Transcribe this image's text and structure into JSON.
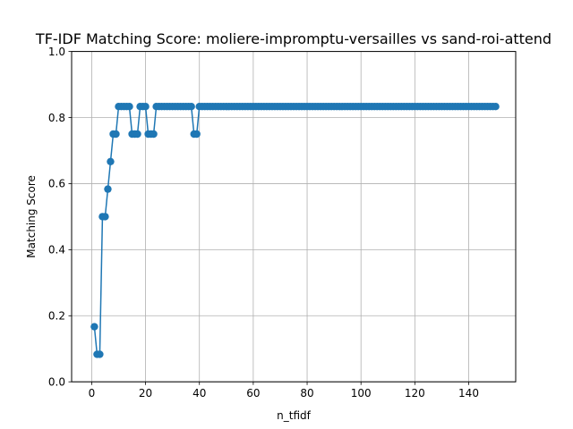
{
  "chart_data": {
    "type": "line",
    "title": "TF-IDF Matching Score: moliere-impromptu-versailles vs sand-roi-attend",
    "xlabel": "n_tfidf",
    "ylabel": "Matching Score",
    "xlim": [
      -7.45,
      157.45
    ],
    "ylim": [
      0.0,
      1.0
    ],
    "x_ticks": [
      0,
      20,
      40,
      60,
      80,
      100,
      120,
      140
    ],
    "x_tick_labels": [
      "0",
      "20",
      "40",
      "60",
      "80",
      "100",
      "120",
      "140"
    ],
    "y_ticks": [
      0.0,
      0.2,
      0.4,
      0.6,
      0.8,
      1.0
    ],
    "y_tick_labels": [
      "0.0",
      "0.2",
      "0.4",
      "0.6",
      "0.8",
      "1.0"
    ],
    "grid": true,
    "marker": "circle",
    "color": "#1f77b4",
    "series": [
      {
        "x": [
          1,
          2,
          3,
          4,
          5,
          6,
          7,
          8,
          9,
          10,
          11,
          12,
          13,
          14,
          15,
          16,
          17,
          18,
          19,
          20,
          21,
          22,
          23,
          24,
          25,
          26,
          27,
          28,
          29,
          30,
          31,
          32,
          33,
          34,
          35,
          36,
          37,
          38,
          39,
          40,
          41,
          42,
          43,
          44,
          45,
          46,
          47,
          48,
          49,
          50,
          51,
          52,
          53,
          54,
          55,
          56,
          57,
          58,
          59,
          60,
          61,
          62,
          63,
          64,
          65,
          66,
          67,
          68,
          69,
          70,
          71,
          72,
          73,
          74,
          75,
          76,
          77,
          78,
          79,
          80,
          81,
          82,
          83,
          84,
          85,
          86,
          87,
          88,
          89,
          90,
          91,
          92,
          93,
          94,
          95,
          96,
          97,
          98,
          99,
          100,
          101,
          102,
          103,
          104,
          105,
          106,
          107,
          108,
          109,
          110,
          111,
          112,
          113,
          114,
          115,
          116,
          117,
          118,
          119,
          120,
          121,
          122,
          123,
          124,
          125,
          126,
          127,
          128,
          129,
          130,
          131,
          132,
          133,
          134,
          135,
          136,
          137,
          138,
          139,
          140,
          141,
          142,
          143,
          144,
          145,
          146,
          147,
          148,
          149,
          150
        ],
        "values": [
          0.1667,
          0.0833,
          0.0833,
          0.5,
          0.5,
          0.5833,
          0.6667,
          0.75,
          0.75,
          0.8333,
          0.8333,
          0.8333,
          0.8333,
          0.8333,
          0.75,
          0.75,
          0.75,
          0.8333,
          0.8333,
          0.8333,
          0.75,
          0.75,
          0.75,
          0.8333,
          0.8333,
          0.8333,
          0.8333,
          0.8333,
          0.8333,
          0.8333,
          0.8333,
          0.8333,
          0.8333,
          0.8333,
          0.8333,
          0.8333,
          0.8333,
          0.75,
          0.75,
          0.8333,
          0.8333,
          0.8333,
          0.8333,
          0.8333,
          0.8333,
          0.8333,
          0.8333,
          0.8333,
          0.8333,
          0.8333,
          0.8333,
          0.8333,
          0.8333,
          0.8333,
          0.8333,
          0.8333,
          0.8333,
          0.8333,
          0.8333,
          0.8333,
          0.8333,
          0.8333,
          0.8333,
          0.8333,
          0.8333,
          0.8333,
          0.8333,
          0.8333,
          0.8333,
          0.8333,
          0.8333,
          0.8333,
          0.8333,
          0.8333,
          0.8333,
          0.8333,
          0.8333,
          0.8333,
          0.8333,
          0.8333,
          0.8333,
          0.8333,
          0.8333,
          0.8333,
          0.8333,
          0.8333,
          0.8333,
          0.8333,
          0.8333,
          0.8333,
          0.8333,
          0.8333,
          0.8333,
          0.8333,
          0.8333,
          0.8333,
          0.8333,
          0.8333,
          0.8333,
          0.8333,
          0.8333,
          0.8333,
          0.8333,
          0.8333,
          0.8333,
          0.8333,
          0.8333,
          0.8333,
          0.8333,
          0.8333,
          0.8333,
          0.8333,
          0.8333,
          0.8333,
          0.8333,
          0.8333,
          0.8333,
          0.8333,
          0.8333,
          0.8333,
          0.8333,
          0.8333,
          0.8333,
          0.8333,
          0.8333,
          0.8333,
          0.8333,
          0.8333,
          0.8333,
          0.8333,
          0.8333,
          0.8333,
          0.8333,
          0.8333,
          0.8333,
          0.8333,
          0.8333,
          0.8333,
          0.8333,
          0.8333,
          0.8333,
          0.8333,
          0.8333,
          0.8333,
          0.8333,
          0.8333,
          0.8333,
          0.8333,
          0.8333,
          0.8333
        ]
      }
    ]
  }
}
